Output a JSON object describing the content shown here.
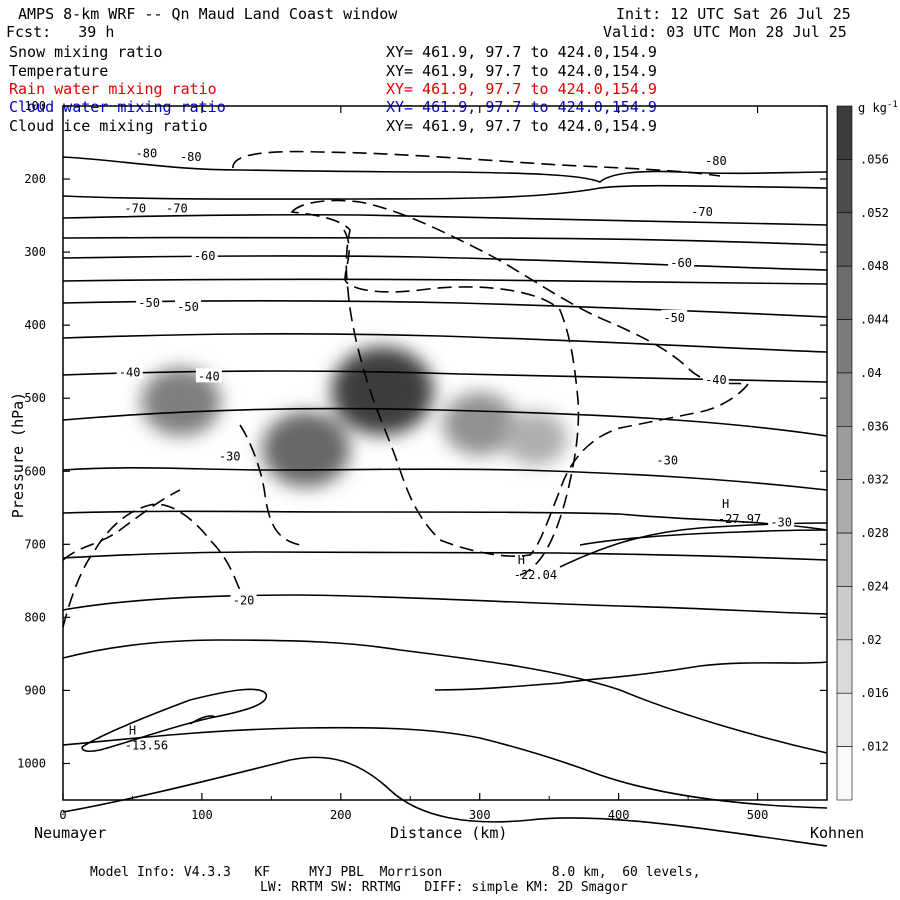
{
  "header": {
    "title": "AMPS 8-km WRF -- Qn Maud Land Coast window",
    "init": "Init: 12 UTC Sat 26 Jul 25",
    "fcst": "Fcst:   39 h",
    "valid": "Valid: 03 UTC Mon 28 Jul 25"
  },
  "legend": [
    {
      "name": "Snow mixing ratio",
      "xy": "XY= 461.9, 97.7 to 424.0,154.9",
      "color": "#000000"
    },
    {
      "name": "Temperature",
      "xy": "XY= 461.9, 97.7 to 424.0,154.9",
      "color": "#000000"
    },
    {
      "name": "Rain water mixing ratio",
      "xy": "XY= 461.9, 97.7 to 424.0,154.9",
      "color": "#e00000"
    },
    {
      "name": "Cloud water mixing ratio",
      "xy": "XY= 461.9, 97.7 to 424.0,154.9",
      "color": "#0000cc"
    },
    {
      "name": "Cloud ice mixing ratio",
      "xy": "XY= 461.9, 97.7 to 424.0,154.9",
      "color": "#000000"
    }
  ],
  "footer": {
    "line1": "Model Info: V4.3.3   KF     MYJ PBL  Morrison              8.0 km,  60 levels,",
    "line2": "LW: RRTM SW: RRTMG   DIFF: simple KM: 2D Smagor"
  },
  "chart_data": {
    "type": "cross-section",
    "xlabel": "Distance (km)",
    "ylabel": "Pressure (hPa)",
    "x_left_label": "Neumayer",
    "x_right_label": "Kohnen",
    "xlim": [
      0,
      550
    ],
    "ylim": [
      1050,
      100
    ],
    "xticks": [
      0,
      100,
      200,
      300,
      400,
      500
    ],
    "yticks": [
      1000,
      900,
      800,
      700,
      600,
      500,
      400,
      300,
      200,
      100
    ],
    "colorbar": {
      "unit": "g kg",
      "unit_sup": "-1",
      "levels": [
        0.012,
        0.016,
        0.02,
        0.024,
        0.028,
        0.032,
        0.036,
        0.04,
        0.044,
        0.048,
        0.052,
        0.056
      ],
      "labels": [
        ".012",
        ".016",
        ".02",
        ".024",
        ".028",
        ".032",
        ".036",
        ".04",
        ".044",
        ".048",
        ".052",
        ".056"
      ]
    },
    "temperature_labels": [
      {
        "text": "-80",
        "x": 60,
        "p": 165
      },
      {
        "text": "-80",
        "x": 92,
        "p": 170
      },
      {
        "text": "-80",
        "x": 470,
        "p": 175
      },
      {
        "text": "-70",
        "x": 52,
        "p": 240
      },
      {
        "text": "-70",
        "x": 82,
        "p": 240
      },
      {
        "text": "-70",
        "x": 460,
        "p": 245
      },
      {
        "text": "-60",
        "x": 102,
        "p": 305
      },
      {
        "text": "-60",
        "x": 445,
        "p": 315
      },
      {
        "text": "-50",
        "x": 62,
        "p": 370
      },
      {
        "text": "-50",
        "x": 90,
        "p": 375
      },
      {
        "text": "-50",
        "x": 440,
        "p": 390
      },
      {
        "text": "-40",
        "x": 48,
        "p": 465
      },
      {
        "text": "-40",
        "x": 105,
        "p": 470
      },
      {
        "text": "-40",
        "x": 470,
        "p": 475
      },
      {
        "text": "-30",
        "x": 120,
        "p": 580
      },
      {
        "text": "-30",
        "x": 435,
        "p": 585
      },
      {
        "text": "-30",
        "x": 517,
        "p": 670
      },
      {
        "text": "-20",
        "x": 130,
        "p": 777
      }
    ],
    "highs": [
      {
        "label": "H",
        "value": "-27.97",
        "x": 477,
        "p": 650
      },
      {
        "label": "H",
        "value": "-22.04",
        "x": 330,
        "p": 727
      },
      {
        "label": "H",
        "value": "-13.56",
        "x": 50,
        "p": 960
      }
    ],
    "snow_blobs": [
      {
        "x": 85,
        "p": 505,
        "peak": 0.036
      },
      {
        "x": 175,
        "p": 570,
        "peak": 0.044
      },
      {
        "x": 230,
        "p": 490,
        "peak": 0.058
      },
      {
        "x": 300,
        "p": 535,
        "peak": 0.03
      },
      {
        "x": 340,
        "p": 555,
        "peak": 0.02
      }
    ]
  }
}
